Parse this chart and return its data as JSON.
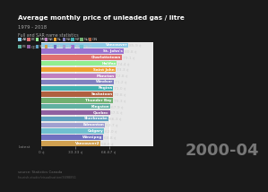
{
  "title": "Average monthly price of unleaded gas / litre",
  "subtitle": "1979 - 2018",
  "legend_label": "Full and SAR name statistics",
  "date_label": "2000-04",
  "fig_bg": "#1a1a1a",
  "chart_bg": "#e8e8e8",
  "bars": [
    {
      "name": "Vancouver",
      "value": 85.89,
      "color": "#8ecae6"
    },
    {
      "name": "St. John's",
      "value": 80.83,
      "color": "#9b72cf"
    },
    {
      "name": "Charlottetown",
      "value": 79.1,
      "color": "#e07070"
    },
    {
      "name": "Halifax",
      "value": 74.43,
      "color": "#90ee90"
    },
    {
      "name": "Moncton",
      "value": 72.79,
      "color": "#c080c0"
    },
    {
      "name": "Saint John",
      "value": 73.33,
      "color": "#f0a030"
    },
    {
      "name": "Windsor",
      "value": 71.16,
      "color": "#8080c0"
    },
    {
      "name": "Regina",
      "value": 70.98,
      "color": "#40b0b0"
    },
    {
      "name": "Thunder Bay",
      "value": 70.33,
      "color": "#70b070"
    },
    {
      "name": "Saskatoon",
      "value": 70.82,
      "color": "#b06040"
    },
    {
      "name": "Kingston",
      "value": 67.89,
      "color": "#60b0a0"
    },
    {
      "name": "Quebec",
      "value": 67.46,
      "color": "#9060a0"
    },
    {
      "name": "Sherbrooke",
      "value": 66.33,
      "color": "#60a0c0"
    },
    {
      "name": "Vancouver2",
      "value": 58.58,
      "color": "#d0a050"
    },
    {
      "name": "Winnipeg",
      "value": 60.83,
      "color": "#7070c0"
    },
    {
      "name": "Edmonton",
      "value": 62.73,
      "color": "#a0a0d0"
    },
    {
      "name": "Calgary",
      "value": 62.0,
      "color": "#70c0d0"
    }
  ],
  "xlim": [
    0,
    110
  ],
  "legend_colors": [
    "#8ecae6",
    "#e07070",
    "#90ee90",
    "#c080c0",
    "#f0a030",
    "#8080c0",
    "#40b0b0",
    "#70b070",
    "#b06040",
    "#60b0a0",
    "#9060a0",
    "#60a0c0",
    "#d0a050",
    "#7070c0",
    "#a0a0d0",
    "#9b72cf",
    "#70c0d0"
  ],
  "legend_names": [
    "AB",
    "BC",
    "MB",
    "NB",
    "NL",
    "NS",
    "NT",
    "NU",
    "ON",
    "PE",
    "QC",
    "SK",
    "YT",
    "Mtn",
    "Ont",
    "Atl",
    "Nat'l"
  ]
}
